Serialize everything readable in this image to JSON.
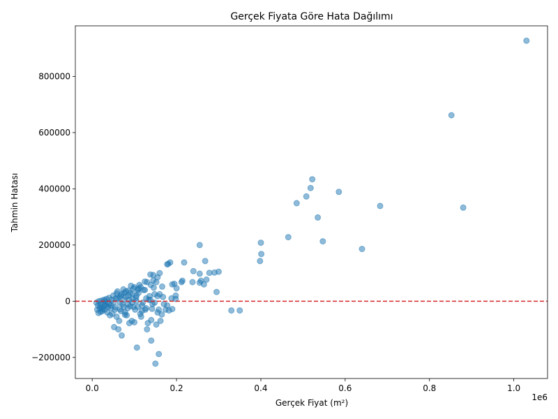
{
  "chart_data": {
    "type": "scatter",
    "title": "Gerçek Fiyata Göre Hata Dağılımı",
    "xlabel": "Gerçek Fiyat (m²)",
    "ylabel": "Tahmin Hatası",
    "x_offset_label": "1e6",
    "xlim": [
      -40000,
      1080000
    ],
    "ylim": [
      -275000,
      980000
    ],
    "x_ticks": [
      0,
      200000,
      400000,
      600000,
      800000,
      1000000
    ],
    "x_tick_labels": [
      "0.0",
      "0.2",
      "0.4",
      "0.6",
      "0.8",
      "1.0"
    ],
    "y_ticks": [
      -200000,
      0,
      200000,
      400000,
      600000,
      800000
    ],
    "y_tick_labels": [
      "−200000",
      "0",
      "200000",
      "400000",
      "600000",
      "800000"
    ],
    "grid": false,
    "point_color": "#1f77b4",
    "point_alpha": 0.5,
    "reference_line": {
      "y": 0,
      "color": "#d62728",
      "style": "dashed"
    },
    "points": [
      [
        1030000,
        927000
      ],
      [
        852000,
        662000
      ],
      [
        880000,
        333000
      ],
      [
        683000,
        339000
      ],
      [
        640000,
        186000
      ],
      [
        585000,
        389000
      ],
      [
        547000,
        213000
      ],
      [
        535000,
        298000
      ],
      [
        522000,
        434000
      ],
      [
        518000,
        403000
      ],
      [
        508000,
        373000
      ],
      [
        485000,
        349000
      ],
      [
        465000,
        228000
      ],
      [
        400000,
        208000
      ],
      [
        401000,
        168000
      ],
      [
        398000,
        143000
      ],
      [
        350000,
        -33000
      ],
      [
        330000,
        -33000
      ],
      [
        300000,
        105000
      ],
      [
        295000,
        33000
      ],
      [
        290000,
        102000
      ],
      [
        278000,
        101000
      ],
      [
        271000,
        77000
      ],
      [
        268000,
        143000
      ],
      [
        265000,
        60000
      ],
      [
        258000,
        73000
      ],
      [
        255000,
        98000
      ],
      [
        255000,
        66000
      ],
      [
        255000,
        200000
      ],
      [
        240000,
        107000
      ],
      [
        238000,
        68000
      ],
      [
        218000,
        138000
      ],
      [
        214000,
        73000
      ],
      [
        212000,
        68000
      ],
      [
        200000,
        46000
      ],
      [
        198000,
        20000
      ],
      [
        198000,
        8000
      ],
      [
        195000,
        62000
      ],
      [
        190000,
        60000
      ],
      [
        190000,
        -28000
      ],
      [
        188000,
        10000
      ],
      [
        185000,
        138000
      ],
      [
        182000,
        -33000
      ],
      [
        180000,
        133000
      ],
      [
        178000,
        131000
      ],
      [
        178000,
        -15000
      ],
      [
        174000,
        -30000
      ],
      [
        170000,
        -10000
      ],
      [
        166000,
        52000
      ],
      [
        165000,
        -47000
      ],
      [
        162000,
        -70000
      ],
      [
        160000,
        100000
      ],
      [
        160000,
        25000
      ],
      [
        158000,
        -188000
      ],
      [
        155000,
        85000
      ],
      [
        155000,
        18000
      ],
      [
        155000,
        -40000
      ],
      [
        152000,
        68000
      ],
      [
        152000,
        -83000
      ],
      [
        150000,
        -222000
      ],
      [
        148000,
        25000
      ],
      [
        146000,
        48000
      ],
      [
        145000,
        93000
      ],
      [
        145000,
        74000
      ],
      [
        143000,
        -10000
      ],
      [
        142000,
        -27000
      ],
      [
        140000,
        -140000
      ],
      [
        140000,
        -67000
      ],
      [
        139000,
        58000
      ],
      [
        138000,
        95000
      ],
      [
        136000,
        18000
      ],
      [
        134000,
        5000
      ],
      [
        132000,
        -78000
      ],
      [
        130000,
        -100000
      ],
      [
        130000,
        68000
      ],
      [
        128000,
        10000
      ],
      [
        126000,
        -30000
      ],
      [
        125000,
        70000
      ],
      [
        122000,
        40000
      ],
      [
        120000,
        -5000
      ],
      [
        118000,
        -35000
      ],
      [
        116000,
        -55000
      ],
      [
        114000,
        -45000
      ],
      [
        112000,
        58000
      ],
      [
        110000,
        30000
      ],
      [
        108000,
        -20000
      ],
      [
        106000,
        -165000
      ],
      [
        104000,
        12000
      ],
      [
        102000,
        -30000
      ],
      [
        100000,
        -75000
      ],
      [
        98000,
        45000
      ],
      [
        96000,
        25000
      ],
      [
        94000,
        -70000
      ],
      [
        92000,
        55000
      ],
      [
        90000,
        -18000
      ],
      [
        88000,
        -78000
      ],
      [
        86000,
        38000
      ],
      [
        84000,
        -25000
      ],
      [
        82000,
        -50000
      ],
      [
        80000,
        15000
      ],
      [
        78000,
        -40000
      ],
      [
        76000,
        30000
      ],
      [
        74000,
        42000
      ],
      [
        72000,
        -10000
      ],
      [
        70000,
        -122000
      ],
      [
        68000,
        20000
      ],
      [
        66000,
        -28000
      ],
      [
        64000,
        -70000
      ],
      [
        62000,
        -100000
      ],
      [
        60000,
        35000
      ],
      [
        58000,
        -55000
      ],
      [
        56000,
        10000
      ],
      [
        54000,
        -30000
      ],
      [
        52000,
        -92000
      ],
      [
        50000,
        20000
      ],
      [
        48000,
        -45000
      ],
      [
        46000,
        5000
      ],
      [
        44000,
        -25000
      ],
      [
        42000,
        -50000
      ],
      [
        40000,
        12000
      ],
      [
        38000,
        -20000
      ],
      [
        36000,
        -40000
      ],
      [
        34000,
        8000
      ],
      [
        32000,
        -15000
      ],
      [
        30000,
        -30000
      ],
      [
        28000,
        5000
      ],
      [
        26000,
        -20000
      ],
      [
        24000,
        -35000
      ],
      [
        22000,
        2000
      ],
      [
        20000,
        -10000
      ],
      [
        18000,
        -25000
      ],
      [
        16000,
        0
      ],
      [
        14000,
        -15000
      ],
      [
        12000,
        -30000
      ],
      [
        10000,
        -5000
      ],
      [
        15000,
        -42000
      ],
      [
        20000,
        -38000
      ],
      [
        25000,
        -28000
      ],
      [
        30000,
        -12000
      ],
      [
        35000,
        -5000
      ],
      [
        45000,
        -15000
      ],
      [
        55000,
        -22000
      ],
      [
        65000,
        -5000
      ],
      [
        75000,
        5000
      ],
      [
        85000,
        -10000
      ],
      [
        95000,
        -5000
      ],
      [
        105000,
        20000
      ],
      [
        115000,
        50000
      ],
      [
        125000,
        40000
      ],
      [
        60000,
        10000
      ],
      [
        70000,
        25000
      ],
      [
        80000,
        35000
      ],
      [
        90000,
        30000
      ],
      [
        100000,
        50000
      ],
      [
        110000,
        45000
      ],
      [
        50000,
        -5000
      ],
      [
        40000,
        -10000
      ],
      [
        30000,
        0
      ],
      [
        20000,
        -20000
      ],
      [
        65000,
        15000
      ],
      [
        75000,
        -20000
      ],
      [
        85000,
        20000
      ],
      [
        95000,
        10000
      ],
      [
        105000,
        0
      ],
      [
        58000,
        28000
      ],
      [
        68000,
        -35000
      ],
      [
        78000,
        -48000
      ],
      [
        88000,
        5000
      ],
      [
        98000,
        -20000
      ],
      [
        108000,
        40000
      ],
      [
        118000,
        -15000
      ],
      [
        128000,
        -25000
      ],
      [
        138000,
        5000
      ],
      [
        148000,
        -5000
      ],
      [
        158000,
        -30000
      ],
      [
        168000,
        15000
      ]
    ]
  }
}
